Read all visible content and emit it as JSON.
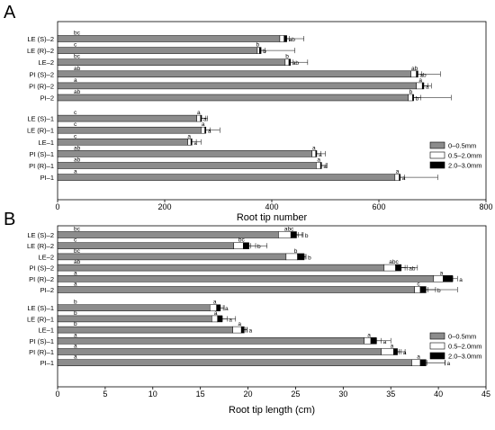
{
  "colors": {
    "seg1": "#8c8c8c",
    "seg2": "#ffffff",
    "seg3": "#000000",
    "axis": "#000000"
  },
  "chart_data": [
    {
      "panel_label": "A",
      "type": "bar",
      "orientation": "horizontal",
      "stacked": true,
      "xlabel": "Root tip number",
      "xlim": [
        0,
        800
      ],
      "xticks": [
        0,
        200,
        400,
        600,
        800
      ],
      "legend_position": "right",
      "series": [
        {
          "name": "0–0.5mm",
          "color": "#8c8c8c"
        },
        {
          "name": "0.5–2.0mm",
          "color": "#ffffff"
        },
        {
          "name": "2.0–3.0mm",
          "color": "#000000"
        }
      ],
      "groups": [
        {
          "categories": [
            {
              "label": "LE (S)–2",
              "values": [
                415,
                8,
                5
              ],
              "errors": [
                45,
                10,
                0
              ],
              "letters": [
                "bc",
                "",
                "ab"
              ]
            },
            {
              "label": "LE (R)–2",
              "values": [
                373,
                4,
                3
              ],
              "errors": [
                70,
                10,
                0
              ],
              "letters": [
                "c",
                "b",
                "b"
              ]
            },
            {
              "label": "LE–2",
              "values": [
                425,
                7,
                3
              ],
              "errors": [
                42,
                8,
                0
              ],
              "letters": [
                "bc",
                "b",
                "ab"
              ]
            },
            {
              "label": "PI (S)–2",
              "values": [
                660,
                10,
                3
              ],
              "errors": [
                55,
                10,
                0
              ],
              "letters": [
                "ab",
                "ab",
                "ab"
              ]
            },
            {
              "label": "PI (R)–2",
              "values": [
                670,
                11,
                3
              ],
              "errors": [
                28,
                11,
                0
              ],
              "letters": [
                "a",
                "a",
                "a"
              ]
            },
            {
              "label": "PI–2",
              "values": [
                655,
                8,
                2
              ],
              "errors": [
                80,
                15,
                0
              ],
              "letters": [
                "ab",
                "b",
                "b"
              ]
            }
          ]
        },
        {
          "categories": [
            {
              "label": "LE (S)–1",
              "values": [
                260,
                7,
                2
              ],
              "errors": [
                20,
                10,
                0
              ],
              "letters": [
                "c",
                "a",
                "a"
              ]
            },
            {
              "label": "LE (R)–1",
              "values": [
                268,
                7,
                2
              ],
              "errors": [
                35,
                10,
                0
              ],
              "letters": [
                "c",
                "a",
                "a"
              ]
            },
            {
              "label": "LE–1",
              "values": [
                243,
                6,
                2
              ],
              "errors": [
                25,
                10,
                0
              ],
              "letters": [
                "c",
                "a",
                "a"
              ]
            },
            {
              "label": "PI (S)–1",
              "values": [
                475,
                7,
                2
              ],
              "errors": [
                25,
                10,
                0
              ],
              "letters": [
                "ab",
                "a",
                "a"
              ]
            },
            {
              "label": "PI (R)–1",
              "values": [
                483,
                8,
                2
              ],
              "errors": [
                20,
                10,
                0
              ],
              "letters": [
                "ab",
                "a",
                "a"
              ]
            },
            {
              "label": "PI–1",
              "values": [
                630,
                8,
                2
              ],
              "errors": [
                80,
                10,
                0
              ],
              "letters": [
                "a",
                "a",
                "a"
              ]
            }
          ]
        }
      ]
    },
    {
      "panel_label": "B",
      "type": "bar",
      "orientation": "horizontal",
      "stacked": true,
      "xlabel": "Root tip length (cm)",
      "xlim": [
        0,
        45
      ],
      "xticks": [
        0,
        5,
        10,
        15,
        20,
        25,
        30,
        35,
        40,
        45
      ],
      "legend_position": "right",
      "series": [
        {
          "name": "0–0.5mm",
          "color": "#8c8c8c"
        },
        {
          "name": "0.5–2.0mm",
          "color": "#ffffff"
        },
        {
          "name": "2.0–3.0mm",
          "color": "#000000"
        }
      ],
      "groups": [
        {
          "categories": [
            {
              "label": "LE (S)–2",
              "values": [
                23.2,
                1.3,
                0.6
              ],
              "errors": [
                2.5,
                0.8,
                0.7
              ],
              "letters": [
                "bc",
                "abc",
                "b"
              ]
            },
            {
              "label": "LE (R)–2",
              "values": [
                18.5,
                1.0,
                0.6
              ],
              "errors": [
                3.5,
                0.8,
                0.7
              ],
              "letters": [
                "c",
                "bc",
                "b"
              ]
            },
            {
              "label": "LE–2",
              "values": [
                24.0,
                1.2,
                0.7
              ],
              "errors": [
                2.0,
                0.6,
                0.2
              ],
              "letters": [
                "bc",
                "b",
                "b"
              ]
            },
            {
              "label": "PI (S)–2",
              "values": [
                34.3,
                1.2,
                0.6
              ],
              "errors": [
                3.5,
                1.0,
                0.6
              ],
              "letters": [
                "ab",
                "abc",
                "ab"
              ]
            },
            {
              "label": "PI (R)–2",
              "values": [
                39.5,
                1.0,
                1.0
              ],
              "errors": [
                2.0,
                1.0,
                0.5
              ],
              "letters": [
                "a",
                "a",
                "a"
              ]
            },
            {
              "label": "PI–2",
              "values": [
                37.5,
                0.6,
                0.6
              ],
              "errors": [
                4.5,
                0.8,
                1.0
              ],
              "letters": [
                "a",
                "c",
                "b"
              ]
            }
          ]
        },
        {
          "categories": [
            {
              "label": "LE (S)–1",
              "values": [
                16.0,
                0.7,
                0.4
              ],
              "errors": [
                1.5,
                0.4,
                0.3
              ],
              "letters": [
                "b",
                "a",
                "a"
              ]
            },
            {
              "label": "LE (R)–1",
              "values": [
                16.2,
                0.6,
                0.5
              ],
              "errors": [
                2.5,
                0.5,
                0.5
              ],
              "letters": [
                "b",
                "a",
                "a"
              ]
            },
            {
              "label": "LE–1",
              "values": [
                18.4,
                0.9,
                0.3
              ],
              "errors": [
                1.5,
                0.4,
                0.3
              ],
              "letters": [
                "b",
                "a",
                "a"
              ]
            },
            {
              "label": "PI (S)–1",
              "values": [
                32.2,
                0.7,
                0.6
              ],
              "errors": [
                2.8,
                0.6,
                0.5
              ],
              "letters": [
                "a",
                "a",
                "a"
              ]
            },
            {
              "label": "PI (R)–1",
              "values": [
                34.0,
                1.3,
                0.4
              ],
              "errors": [
                2.5,
                0.6,
                0.4
              ],
              "letters": [
                "a",
                "a",
                "a"
              ]
            },
            {
              "label": "PI–1",
              "values": [
                37.2,
                0.9,
                0.6
              ],
              "errors": [
                3.5,
                0.7,
                2.0
              ],
              "letters": [
                "a",
                "a",
                "a"
              ]
            }
          ]
        }
      ]
    }
  ]
}
